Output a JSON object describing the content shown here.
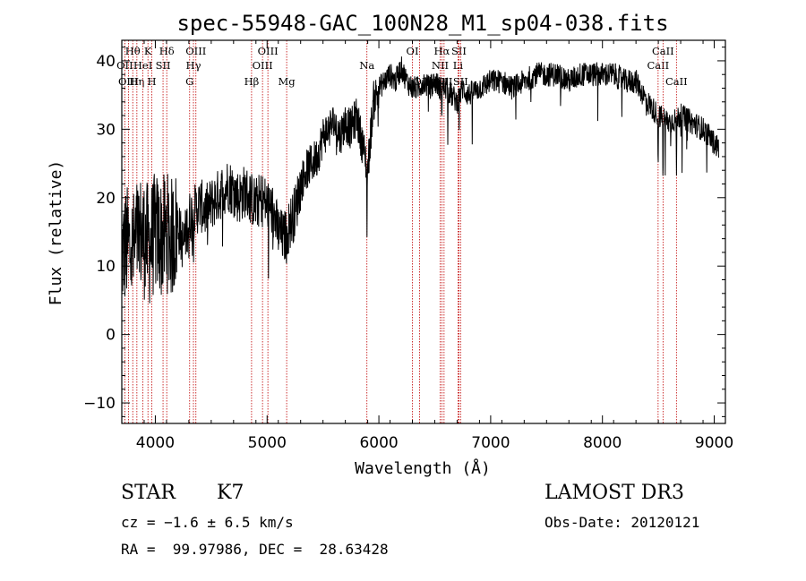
{
  "chart_data": {
    "type": "line",
    "title": "spec-55948-GAC_100N28_M1_sp04-038.fits",
    "xlabel": "Wavelength (Å)",
    "ylabel": "Flux (relative)",
    "xlim": [
      3700,
      9100
    ],
    "ylim": [
      -13,
      43
    ],
    "xticks": [
      4000,
      5000,
      6000,
      7000,
      8000,
      9000
    ],
    "yticks": [
      -10,
      0,
      10,
      20,
      30,
      40
    ],
    "series": [
      {
        "name": "flux",
        "x": [
          3700,
          3750,
          3800,
          3850,
          3900,
          3950,
          4000,
          4050,
          4100,
          4150,
          4200,
          4250,
          4300,
          4350,
          4400,
          4450,
          4500,
          4550,
          4600,
          4650,
          4700,
          4750,
          4800,
          4850,
          4900,
          4950,
          5000,
          5050,
          5100,
          5150,
          5200,
          5250,
          5300,
          5350,
          5400,
          5450,
          5500,
          5550,
          5600,
          5650,
          5700,
          5750,
          5800,
          5850,
          5900,
          5950,
          6000,
          6050,
          6100,
          6150,
          6200,
          6250,
          6300,
          6350,
          6400,
          6450,
          6500,
          6550,
          6600,
          6650,
          6700,
          6750,
          6800,
          6900,
          7000,
          7100,
          7200,
          7300,
          7400,
          7500,
          7600,
          7700,
          7800,
          7900,
          8000,
          8100,
          8200,
          8300,
          8400,
          8500,
          8600,
          8700,
          8800,
          8900,
          9000,
          9050
        ],
        "y": [
          12,
          13,
          12,
          15,
          14,
          13,
          15,
          14,
          15,
          14,
          16,
          13,
          17,
          18,
          19,
          18,
          19,
          20,
          21,
          22,
          21,
          20,
          21,
          20,
          19,
          20,
          19,
          18,
          15,
          14,
          16,
          18,
          22,
          24,
          25,
          26,
          29,
          30,
          31,
          29,
          31,
          30,
          32,
          28,
          24,
          34,
          36,
          37,
          38,
          37,
          39,
          37,
          36,
          36,
          37,
          36,
          37,
          36,
          36,
          35,
          34,
          36,
          35,
          36,
          37,
          37,
          36,
          37,
          38,
          38,
          38,
          37,
          38,
          38,
          38,
          38,
          37,
          37,
          34,
          32,
          31,
          32,
          31,
          30,
          28,
          27
        ]
      }
    ],
    "line_markers": [
      {
        "label": "Hθ",
        "x": 3798,
        "row": 1
      },
      {
        "label": "OII",
        "x": 3727,
        "row": 2
      },
      {
        "label": "OIII",
        "x": 3760,
        "row": 3
      },
      {
        "label": "Hη",
        "x": 3835,
        "row": 3
      },
      {
        "label": "HeI",
        "x": 3889,
        "row": 2
      },
      {
        "label": "K",
        "x": 3934,
        "row": 1
      },
      {
        "label": "H",
        "x": 3969,
        "row": 3
      },
      {
        "label": "SII",
        "x": 4069,
        "row": 2
      },
      {
        "label": "Hδ",
        "x": 4102,
        "row": 1
      },
      {
        "label": "G",
        "x": 4307,
        "row": 3
      },
      {
        "label": "Hγ",
        "x": 4341,
        "row": 2
      },
      {
        "label": "OIII",
        "x": 4363,
        "row": 1
      },
      {
        "label": "Hβ",
        "x": 4861,
        "row": 3
      },
      {
        "label": "OIII",
        "x": 4959,
        "row": 2
      },
      {
        "label": "OIII",
        "x": 5007,
        "row": 1
      },
      {
        "label": "Mg",
        "x": 5175,
        "row": 3
      },
      {
        "label": "Na",
        "x": 5893,
        "row": 2
      },
      {
        "label": "OI",
        "x": 6300,
        "row": 1
      },
      {
        "label": "OI",
        "x": 6364,
        "row": 3
      },
      {
        "label": "NII",
        "x": 6548,
        "row": 2
      },
      {
        "label": "Hα",
        "x": 6563,
        "row": 1
      },
      {
        "label": "NII",
        "x": 6583,
        "row": 3
      },
      {
        "label": "Li",
        "x": 6708,
        "row": 2
      },
      {
        "label": "SII",
        "x": 6716,
        "row": 1
      },
      {
        "label": "SII",
        "x": 6731,
        "row": 3
      },
      {
        "label": "CaII",
        "x": 8498,
        "row": 2
      },
      {
        "label": "CaII",
        "x": 8542,
        "row": 1
      },
      {
        "label": "CaII",
        "x": 8662,
        "row": 3
      }
    ]
  },
  "info": {
    "class": "STAR",
    "subclass": "K7",
    "survey": "LAMOST DR3",
    "cz": "cz = −1.6 ± 6.5 km/s",
    "obs_date": "Obs-Date: 20120121",
    "coords": "RA =  99.97986, DEC =  28.63428"
  }
}
